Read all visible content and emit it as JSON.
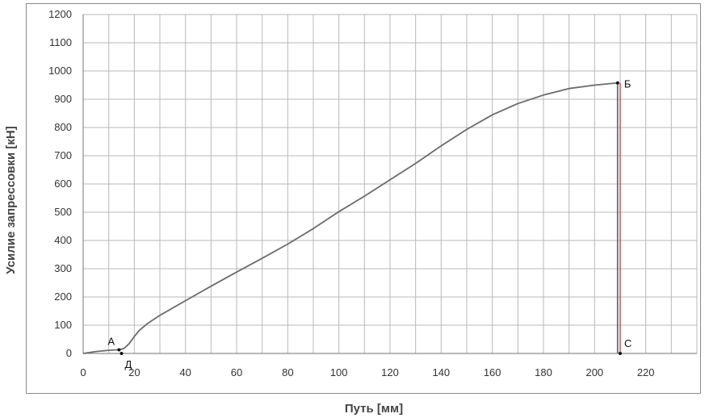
{
  "chart_data": {
    "type": "line",
    "title": "",
    "xlabel": "Путь [мм]",
    "ylabel": "Усилие запрессовки [кН]",
    "xlim": [
      0,
      240
    ],
    "ylim": [
      0,
      1200
    ],
    "x_ticks": [
      0,
      20,
      40,
      60,
      80,
      100,
      120,
      140,
      160,
      180,
      200,
      220
    ],
    "y_ticks": [
      0,
      100,
      200,
      300,
      400,
      500,
      600,
      700,
      800,
      900,
      1000,
      1100,
      1200
    ],
    "x_minor_step": 10,
    "grid": true,
    "legend": "none",
    "series": [
      {
        "color": "#6b6b6b",
        "points": [
          [
            0,
            0
          ],
          [
            5,
            7
          ],
          [
            10,
            11
          ],
          [
            14,
            13
          ],
          [
            16,
            18
          ],
          [
            18,
            35
          ],
          [
            20,
            60
          ],
          [
            22,
            82
          ],
          [
            25,
            105
          ],
          [
            30,
            135
          ],
          [
            40,
            187
          ],
          [
            50,
            238
          ],
          [
            60,
            288
          ],
          [
            70,
            337
          ],
          [
            80,
            387
          ],
          [
            90,
            442
          ],
          [
            100,
            502
          ],
          [
            110,
            557
          ],
          [
            120,
            615
          ],
          [
            130,
            673
          ],
          [
            140,
            735
          ],
          [
            150,
            793
          ],
          [
            160,
            845
          ],
          [
            170,
            885
          ],
          [
            180,
            915
          ],
          [
            190,
            938
          ],
          [
            200,
            950
          ],
          [
            209,
            958
          ],
          [
            209,
            0
          ]
        ]
      }
    ],
    "annotations": [
      {
        "label": "А",
        "x": 14,
        "y": 13
      },
      {
        "label": "Д",
        "x": 15,
        "y": 0
      },
      {
        "label": "Б",
        "x": 209,
        "y": 958
      },
      {
        "label": "С",
        "x": 210,
        "y": 0
      }
    ],
    "vertical_marker": {
      "x": 210,
      "color": "#b04040"
    }
  }
}
